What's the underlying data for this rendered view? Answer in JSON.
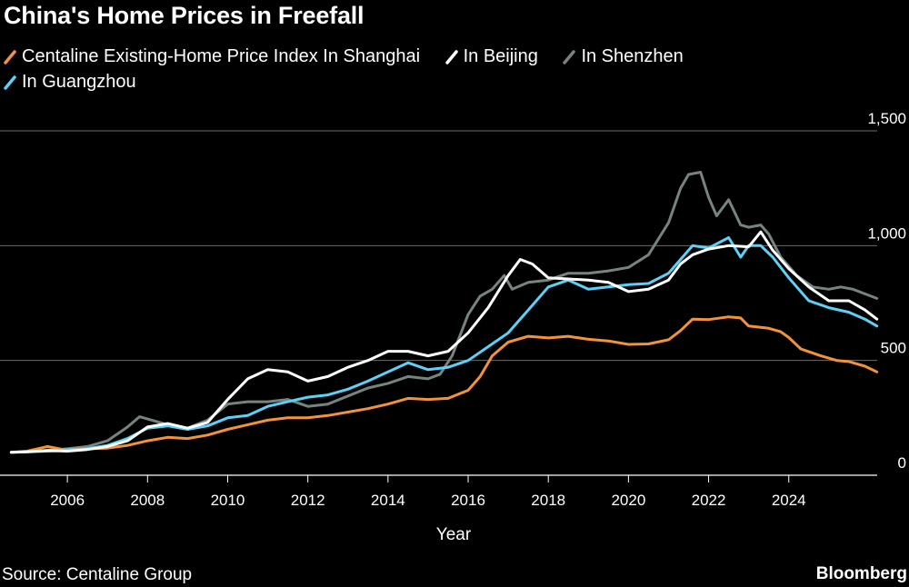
{
  "title": "China's Home Prices in Freefall",
  "legend": [
    {
      "label": "Centaline Existing-Home Price Index In Shanghai",
      "color": "#f2923a"
    },
    {
      "label": "In Beijing",
      "color": "#ffffff"
    },
    {
      "label": "In Shenzhen",
      "color": "#76847f"
    },
    {
      "label": "In Guangzhou",
      "color": "#5bd1f7"
    }
  ],
  "source": "Source: Centaline Group",
  "brand": "Bloomberg",
  "chart_data": {
    "type": "line",
    "title": "China's Home Prices in Freefall",
    "xlabel": "Year",
    "ylabel": "",
    "xlim": [
      2004.5,
      2027.0
    ],
    "ylim": [
      0,
      1500
    ],
    "x_ticks": [
      2006,
      2008,
      2010,
      2012,
      2014,
      2016,
      2018,
      2020,
      2022,
      2024
    ],
    "y_ticks": [
      0,
      500,
      1000,
      1500
    ],
    "y_tick_labels": [
      "0",
      "500",
      "1,000",
      "1,500"
    ],
    "grid": "horizontal",
    "series": [
      {
        "name": "Shanghai",
        "color": "#f2923a",
        "points": [
          [
            2004.6,
            100
          ],
          [
            2005.0,
            105
          ],
          [
            2005.5,
            125
          ],
          [
            2005.9,
            112
          ],
          [
            2006.5,
            115
          ],
          [
            2007.0,
            118
          ],
          [
            2007.5,
            130
          ],
          [
            2008.0,
            150
          ],
          [
            2008.5,
            165
          ],
          [
            2009.0,
            160
          ],
          [
            2009.5,
            175
          ],
          [
            2010.0,
            200
          ],
          [
            2010.5,
            220
          ],
          [
            2011.0,
            240
          ],
          [
            2011.5,
            250
          ],
          [
            2012.0,
            250
          ],
          [
            2012.5,
            260
          ],
          [
            2013.0,
            275
          ],
          [
            2013.5,
            290
          ],
          [
            2014.0,
            310
          ],
          [
            2014.5,
            335
          ],
          [
            2015.0,
            330
          ],
          [
            2015.5,
            335
          ],
          [
            2016.0,
            370
          ],
          [
            2016.3,
            430
          ],
          [
            2016.6,
            520
          ],
          [
            2017.0,
            580
          ],
          [
            2017.5,
            605
          ],
          [
            2018.0,
            598
          ],
          [
            2018.5,
            605
          ],
          [
            2019.0,
            592
          ],
          [
            2019.5,
            585
          ],
          [
            2020.0,
            570
          ],
          [
            2020.5,
            572
          ],
          [
            2021.0,
            590
          ],
          [
            2021.3,
            630
          ],
          [
            2021.6,
            680
          ],
          [
            2022.0,
            678
          ],
          [
            2022.5,
            690
          ],
          [
            2022.8,
            685
          ],
          [
            2023.0,
            650
          ],
          [
            2023.5,
            640
          ],
          [
            2023.8,
            625
          ],
          [
            2024.0,
            600
          ],
          [
            2024.3,
            550
          ],
          [
            2024.8,
            520
          ],
          [
            2025.2,
            500
          ],
          [
            2025.5,
            495
          ],
          [
            2025.9,
            475
          ],
          [
            2026.2,
            450
          ]
        ]
      },
      {
        "name": "Beijing",
        "color": "#ffffff",
        "points": [
          [
            2004.6,
            100
          ],
          [
            2005.0,
            102
          ],
          [
            2005.5,
            108
          ],
          [
            2006.0,
            105
          ],
          [
            2006.5,
            112
          ],
          [
            2007.0,
            125
          ],
          [
            2007.5,
            150
          ],
          [
            2008.0,
            210
          ],
          [
            2008.5,
            225
          ],
          [
            2009.0,
            205
          ],
          [
            2009.5,
            230
          ],
          [
            2010.0,
            330
          ],
          [
            2010.5,
            420
          ],
          [
            2011.0,
            460
          ],
          [
            2011.5,
            450
          ],
          [
            2012.0,
            410
          ],
          [
            2012.5,
            430
          ],
          [
            2013.0,
            470
          ],
          [
            2013.5,
            500
          ],
          [
            2014.0,
            540
          ],
          [
            2014.5,
            540
          ],
          [
            2015.0,
            520
          ],
          [
            2015.5,
            540
          ],
          [
            2016.0,
            620
          ],
          [
            2016.5,
            730
          ],
          [
            2017.0,
            870
          ],
          [
            2017.3,
            940
          ],
          [
            2017.6,
            920
          ],
          [
            2018.0,
            860
          ],
          [
            2018.5,
            855
          ],
          [
            2019.0,
            850
          ],
          [
            2019.5,
            840
          ],
          [
            2020.0,
            800
          ],
          [
            2020.5,
            810
          ],
          [
            2021.0,
            850
          ],
          [
            2021.3,
            920
          ],
          [
            2021.6,
            960
          ],
          [
            2022.0,
            985
          ],
          [
            2022.5,
            1000
          ],
          [
            2023.0,
            995
          ],
          [
            2023.3,
            1060
          ],
          [
            2023.6,
            980
          ],
          [
            2024.0,
            900
          ],
          [
            2024.5,
            820
          ],
          [
            2025.0,
            760
          ],
          [
            2025.5,
            760
          ],
          [
            2025.9,
            720
          ],
          [
            2026.2,
            680
          ]
        ]
      },
      {
        "name": "Shenzhen",
        "color": "#76847f",
        "points": [
          [
            2004.6,
            100
          ],
          [
            2005.0,
            103
          ],
          [
            2005.5,
            108
          ],
          [
            2006.0,
            115
          ],
          [
            2006.5,
            125
          ],
          [
            2007.0,
            150
          ],
          [
            2007.5,
            210
          ],
          [
            2007.8,
            255
          ],
          [
            2008.2,
            235
          ],
          [
            2008.6,
            215
          ],
          [
            2009.0,
            205
          ],
          [
            2009.5,
            240
          ],
          [
            2010.0,
            310
          ],
          [
            2010.5,
            320
          ],
          [
            2011.0,
            320
          ],
          [
            2011.5,
            330
          ],
          [
            2012.0,
            300
          ],
          [
            2012.5,
            310
          ],
          [
            2013.0,
            345
          ],
          [
            2013.5,
            380
          ],
          [
            2014.0,
            400
          ],
          [
            2014.5,
            430
          ],
          [
            2015.0,
            420
          ],
          [
            2015.3,
            440
          ],
          [
            2015.6,
            520
          ],
          [
            2016.0,
            700
          ],
          [
            2016.3,
            780
          ],
          [
            2016.6,
            810
          ],
          [
            2016.9,
            870
          ],
          [
            2017.1,
            810
          ],
          [
            2017.5,
            840
          ],
          [
            2018.0,
            850
          ],
          [
            2018.5,
            880
          ],
          [
            2019.0,
            880
          ],
          [
            2019.5,
            890
          ],
          [
            2020.0,
            905
          ],
          [
            2020.5,
            960
          ],
          [
            2021.0,
            1100
          ],
          [
            2021.3,
            1250
          ],
          [
            2021.5,
            1310
          ],
          [
            2021.8,
            1320
          ],
          [
            2022.0,
            1210
          ],
          [
            2022.2,
            1130
          ],
          [
            2022.5,
            1200
          ],
          [
            2022.8,
            1090
          ],
          [
            2023.0,
            1080
          ],
          [
            2023.3,
            1090
          ],
          [
            2023.5,
            1050
          ],
          [
            2023.8,
            950
          ],
          [
            2024.2,
            870
          ],
          [
            2024.6,
            820
          ],
          [
            2025.0,
            810
          ],
          [
            2025.3,
            820
          ],
          [
            2025.6,
            810
          ],
          [
            2025.9,
            790
          ],
          [
            2026.2,
            770
          ]
        ]
      },
      {
        "name": "Guangzhou",
        "color": "#5bd1f7",
        "points": [
          [
            2004.6,
            100
          ],
          [
            2005.0,
            102
          ],
          [
            2005.5,
            105
          ],
          [
            2006.0,
            108
          ],
          [
            2006.5,
            115
          ],
          [
            2007.0,
            130
          ],
          [
            2007.5,
            160
          ],
          [
            2008.0,
            205
          ],
          [
            2008.5,
            215
          ],
          [
            2009.0,
            200
          ],
          [
            2009.5,
            215
          ],
          [
            2010.0,
            250
          ],
          [
            2010.5,
            260
          ],
          [
            2011.0,
            300
          ],
          [
            2011.5,
            320
          ],
          [
            2012.0,
            340
          ],
          [
            2012.5,
            350
          ],
          [
            2013.0,
            375
          ],
          [
            2013.5,
            410
          ],
          [
            2014.0,
            450
          ],
          [
            2014.5,
            490
          ],
          [
            2015.0,
            460
          ],
          [
            2015.5,
            470
          ],
          [
            2016.0,
            500
          ],
          [
            2016.5,
            560
          ],
          [
            2017.0,
            620
          ],
          [
            2017.5,
            720
          ],
          [
            2018.0,
            820
          ],
          [
            2018.5,
            850
          ],
          [
            2019.0,
            810
          ],
          [
            2019.5,
            820
          ],
          [
            2020.0,
            830
          ],
          [
            2020.5,
            835
          ],
          [
            2021.0,
            880
          ],
          [
            2021.3,
            940
          ],
          [
            2021.6,
            1000
          ],
          [
            2022.0,
            990
          ],
          [
            2022.5,
            1035
          ],
          [
            2022.8,
            950
          ],
          [
            2023.0,
            1000
          ],
          [
            2023.3,
            1000
          ],
          [
            2023.6,
            950
          ],
          [
            2024.0,
            860
          ],
          [
            2024.5,
            760
          ],
          [
            2025.0,
            730
          ],
          [
            2025.5,
            710
          ],
          [
            2025.9,
            680
          ],
          [
            2026.2,
            650
          ]
        ]
      }
    ]
  }
}
